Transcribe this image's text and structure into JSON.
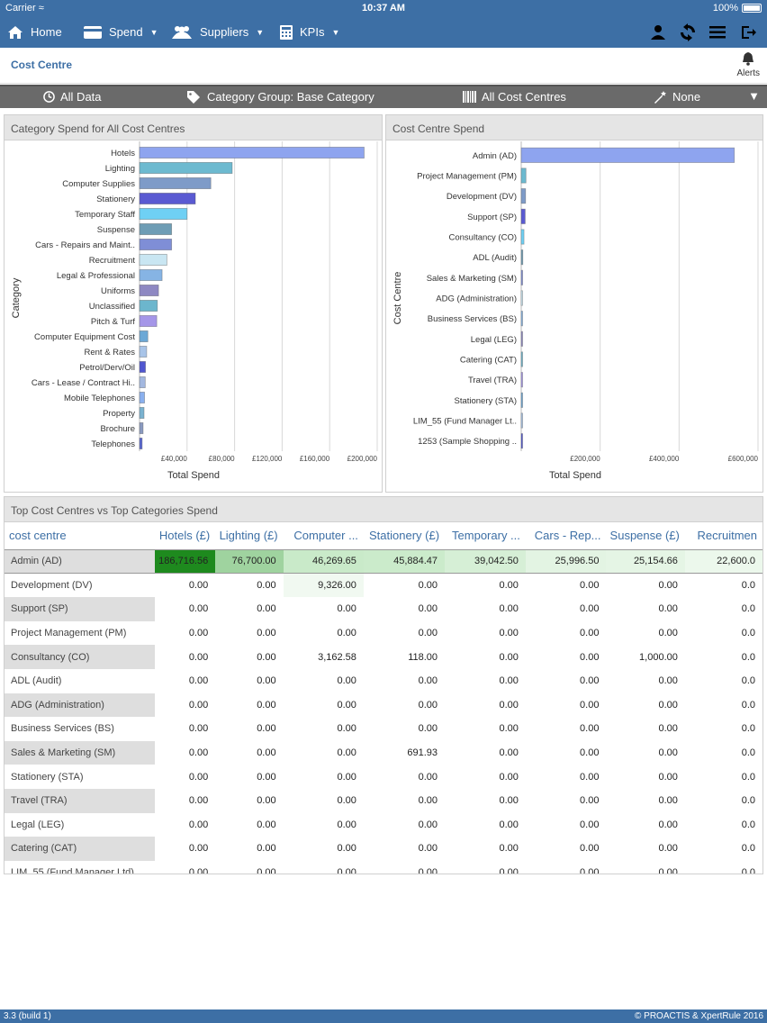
{
  "status": {
    "carrier": "Carrier",
    "time": "10:37 AM",
    "battery": "100%"
  },
  "nav": {
    "home": "Home",
    "spend": "Spend",
    "suppliers": "Suppliers",
    "kpis": "KPIs"
  },
  "page": {
    "title": "Cost Centre",
    "alerts": "Alerts"
  },
  "filters": {
    "data": "All Data",
    "category_group": "Category Group: Base Category",
    "cost_centres": "All Cost Centres",
    "none": "None"
  },
  "panels": {
    "left_title": "Category Spend for All Cost Centres",
    "right_title": "Cost Centre Spend",
    "table_title": "Top Cost Centres vs Top Categories Spend"
  },
  "chart_data": [
    {
      "type": "bar",
      "orientation": "horizontal",
      "title": "Category Spend for All Cost Centres",
      "xlabel": "Total Spend",
      "ylabel": "Category",
      "xticks": [
        "£40,000",
        "£80,000",
        "£120,000",
        "£160,000",
        "£200,000"
      ],
      "xlim": [
        0,
        200000
      ],
      "categories": [
        "Hotels",
        "Lighting",
        "Computer Supplies",
        "Stationery",
        "Temporary Staff",
        "Suspense",
        "Cars -  Repairs and Maint..",
        "Recruitment",
        "Legal & Professional",
        "Uniforms",
        "Unclassified",
        "Pitch & Turf",
        "Computer Equipment Cost",
        "Rent & Rates",
        "Petrol/Derv/Oil",
        "Cars - Lease / Contract Hi..",
        "Mobile Telephones",
        "Property",
        "Brochure",
        "Telephones"
      ],
      "values": [
        189000,
        78000,
        60000,
        47000,
        40000,
        27000,
        27000,
        23000,
        19000,
        16000,
        15000,
        14500,
        7000,
        6000,
        5000,
        4800,
        4200,
        3800,
        3000,
        2200
      ],
      "colors": [
        "#8ea4ef",
        "#6dbad0",
        "#7e9bc8",
        "#5a5ad2",
        "#6fd0f4",
        "#6e9db5",
        "#7f8ed6",
        "#c9e6f2",
        "#86b4e4",
        "#8e88c2",
        "#6cb6cd",
        "#a596e8",
        "#6ca8d6",
        "#a8c4e8",
        "#5056d0",
        "#a3b8e0",
        "#8ab0ee",
        "#7ab2d0",
        "#8a9ac0",
        "#5a68d0"
      ]
    },
    {
      "type": "bar",
      "orientation": "horizontal",
      "title": "Cost Centre Spend",
      "xlabel": "Total Spend",
      "ylabel": "Cost Centre",
      "xticks": [
        "£200,000",
        "£400,000",
        "£600,000"
      ],
      "xlim": [
        0,
        600000
      ],
      "categories": [
        "Admin (AD)",
        "Project Management (PM)",
        "Development (DV)",
        "Support (SP)",
        "Consultancy (CO)",
        "ADL (Audit)",
        "Sales & Marketing (SM)",
        "ADG (Administration)",
        "Business Services (BS)",
        "Legal (LEG)",
        "Catering (CAT)",
        "Travel (TRA)",
        "Stationery (STA)",
        "LIM_55 (Fund Manager Lt..",
        "1253 (Sample Shopping .."
      ],
      "values": [
        540000,
        12000,
        11000,
        10000,
        7000,
        4000,
        3500,
        1500,
        3000,
        2500,
        2000,
        2500,
        2000,
        1000,
        3000
      ],
      "colors": [
        "#8ea4ef",
        "#6dbad0",
        "#7e9bc8",
        "#5a5ad2",
        "#6fd0f4",
        "#6e9db5",
        "#7f8ed6",
        "#c9e6f2",
        "#86b4e4",
        "#8e88c2",
        "#6cb6cd",
        "#a596e8",
        "#6ca8d6",
        "#a8c4e8",
        "#5056d0"
      ]
    }
  ],
  "table": {
    "columns": [
      "cost centre",
      "Hotels (£)",
      "Lighting (£)",
      "Computer ...",
      "Stationery (£)",
      "Temporary ...",
      "Cars - Rep...",
      "Suspense (£)",
      "Recruitmen"
    ],
    "rows": [
      [
        "Admin (AD)",
        "186,716.56",
        "76,700.00",
        "46,269.65",
        "45,884.47",
        "39,042.50",
        "25,996.50",
        "25,154.66",
        "22,600.0"
      ],
      [
        "Development (DV)",
        "0.00",
        "0.00",
        "9,326.00",
        "0.00",
        "0.00",
        "0.00",
        "0.00",
        "0.0"
      ],
      [
        "Support (SP)",
        "0.00",
        "0.00",
        "0.00",
        "0.00",
        "0.00",
        "0.00",
        "0.00",
        "0.0"
      ],
      [
        "Project Management (PM)",
        "0.00",
        "0.00",
        "0.00",
        "0.00",
        "0.00",
        "0.00",
        "0.00",
        "0.0"
      ],
      [
        "Consultancy (CO)",
        "0.00",
        "0.00",
        "3,162.58",
        "118.00",
        "0.00",
        "0.00",
        "1,000.00",
        "0.0"
      ],
      [
        "ADL (Audit)",
        "0.00",
        "0.00",
        "0.00",
        "0.00",
        "0.00",
        "0.00",
        "0.00",
        "0.0"
      ],
      [
        "ADG (Administration)",
        "0.00",
        "0.00",
        "0.00",
        "0.00",
        "0.00",
        "0.00",
        "0.00",
        "0.0"
      ],
      [
        "Business Services (BS)",
        "0.00",
        "0.00",
        "0.00",
        "0.00",
        "0.00",
        "0.00",
        "0.00",
        "0.0"
      ],
      [
        "Sales & Marketing (SM)",
        "0.00",
        "0.00",
        "0.00",
        "691.93",
        "0.00",
        "0.00",
        "0.00",
        "0.0"
      ],
      [
        "Stationery (STA)",
        "0.00",
        "0.00",
        "0.00",
        "0.00",
        "0.00",
        "0.00",
        "0.00",
        "0.0"
      ],
      [
        "Travel (TRA)",
        "0.00",
        "0.00",
        "0.00",
        "0.00",
        "0.00",
        "0.00",
        "0.00",
        "0.0"
      ],
      [
        "Legal (LEG)",
        "0.00",
        "0.00",
        "0.00",
        "0.00",
        "0.00",
        "0.00",
        "0.00",
        "0.0"
      ],
      [
        "Catering (CAT)",
        "0.00",
        "0.00",
        "0.00",
        "0.00",
        "0.00",
        "0.00",
        "0.00",
        "0.0"
      ],
      [
        "LIM_55 (Fund Manager Ltd)",
        "0.00",
        "0.00",
        "0.00",
        "0.00",
        "0.00",
        "0.00",
        "0.00",
        "0.0"
      ]
    ],
    "first_row_colors": [
      "#1e8a1e",
      "#9fd39f",
      "#c9eac9",
      "#cbebcb",
      "#d6efd6",
      "#e3f4e3",
      "#e5f5e5",
      "#ecf8ec"
    ],
    "highlight_dv_computer": "#f1f9f1"
  },
  "footer": {
    "version": "3.3 (build 1)",
    "copyright": "© PROACTIS & XpertRule 2016"
  }
}
